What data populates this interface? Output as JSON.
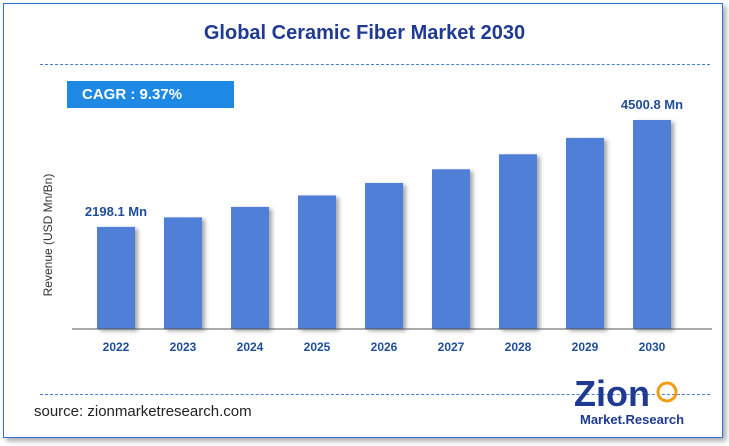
{
  "header": {
    "title": "Global Ceramic Fiber Market 2030"
  },
  "cagr": {
    "text": "CAGR : 9.37%"
  },
  "source": {
    "text": "source: zionmarketresearch.com"
  },
  "logo": {
    "top": "Zion",
    "bottom": "Market.Research"
  },
  "colors": {
    "bar": "#4f7fd6",
    "accent": "#1e88e5",
    "title": "#1f3a93",
    "label": "#1f4e99"
  },
  "chart_data": {
    "type": "bar",
    "title": "Global Ceramic Fiber Market 2030",
    "ylabel": "Revenue (USD Mn/Bn)",
    "xlabel": "",
    "categories": [
      "2022",
      "2023",
      "2024",
      "2025",
      "2026",
      "2027",
      "2028",
      "2029",
      "2030"
    ],
    "values": [
      2198.1,
      2404.1,
      2629.4,
      2875.8,
      3145.3,
      3440.1,
      3762.5,
      4115.1,
      4500.8
    ],
    "data_labels": [
      {
        "category": "2022",
        "text": "2198.1 Mn"
      },
      {
        "category": "2030",
        "text": "4500.8 Mn"
      }
    ],
    "ylim": [
      0,
      4700
    ],
    "grid": false,
    "legend": "none"
  }
}
